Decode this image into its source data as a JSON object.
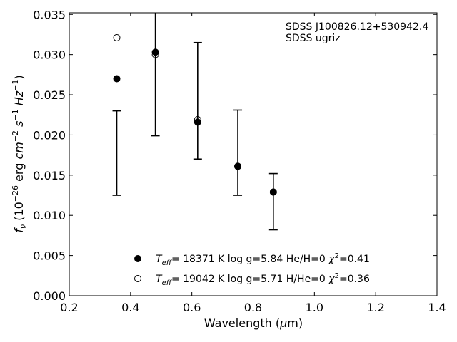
{
  "chart_data": {
    "type": "scatter",
    "title": "",
    "xlabel": "Wavelength (μm)",
    "ylabel": "f_ν (10^-26 erg cm^-2 s^-1 Hz^-1)",
    "xlim": [
      0.2,
      1.4
    ],
    "ylim": [
      0.0,
      0.0352
    ],
    "xticks": [
      0.2,
      0.4,
      0.6,
      0.8,
      1.0,
      1.2,
      1.4
    ],
    "xtick_labels": [
      "0.2",
      "0.4",
      "0.6",
      "0.8",
      "1.0",
      "1.2",
      "1.4"
    ],
    "yticks": [
      0.0,
      0.005,
      0.01,
      0.015,
      0.02,
      0.025,
      0.03,
      0.035
    ],
    "ytick_labels": [
      "0.000",
      "0.005",
      "0.010",
      "0.015",
      "0.020",
      "0.025",
      "0.030",
      "0.035"
    ],
    "grid": false,
    "legend_position": "bottom-center",
    "annotation": [
      "SDSS J100826.12+530942.4",
      "SDSS ugriz"
    ],
    "errorbars": [
      {
        "x": 0.355,
        "low": 0.0125,
        "high": 0.023
      },
      {
        "x": 0.481,
        "low": 0.0199,
        "high": 0.036
      },
      {
        "x": 0.619,
        "low": 0.017,
        "high": 0.0315
      },
      {
        "x": 0.75,
        "low": 0.0125,
        "high": 0.0231
      },
      {
        "x": 0.866,
        "low": 0.0082,
        "high": 0.0152
      }
    ],
    "series": [
      {
        "name": "He/H=0",
        "legend": {
          "teff": "18371",
          "logg": "5.84",
          "comp": "He/H=0",
          "chi2": "0.41"
        },
        "marker": "filled-circle",
        "x": [
          0.355,
          0.481,
          0.619,
          0.75,
          0.866
        ],
        "y": [
          0.027,
          0.0303,
          0.0216,
          0.0161,
          0.0129
        ]
      },
      {
        "name": "H/He=0",
        "legend": {
          "teff": "19042",
          "logg": "5.71",
          "comp": "H/He=0",
          "chi2": "0.36"
        },
        "marker": "open-circle",
        "x": [
          0.355,
          0.481,
          0.619,
          0.75,
          0.866
        ],
        "y": [
          0.0321,
          0.03,
          0.0219,
          0.0161,
          0.0129
        ]
      }
    ]
  }
}
